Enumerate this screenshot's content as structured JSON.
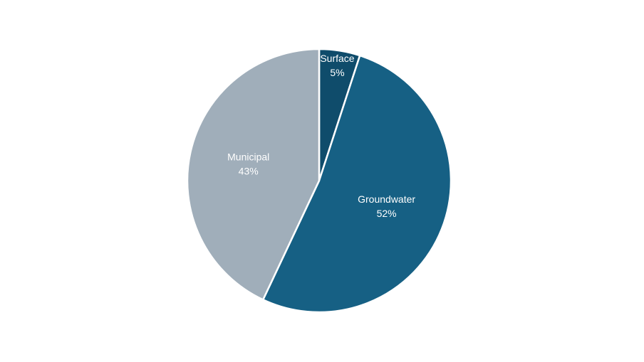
{
  "chart_data": {
    "type": "pie",
    "categories": [
      "Surface",
      "Groundwater",
      "Municipal"
    ],
    "values": [
      5,
      52,
      43
    ],
    "value_labels": [
      "5%",
      "52%",
      "43%"
    ],
    "colors": [
      "#0f4c6b",
      "#166084",
      "#a0aeba"
    ]
  }
}
